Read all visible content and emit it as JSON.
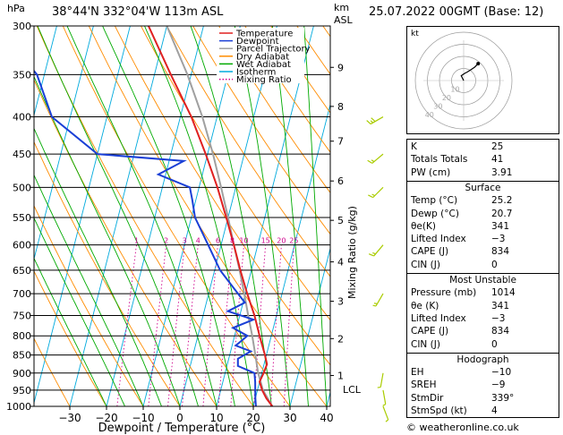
{
  "header": {
    "pressure_unit": "hPa",
    "location": "38°44'N  332°04'W  113m  ASL",
    "height_unit": "km",
    "height_unit_sub": "ASL",
    "datetime": "25.07.2022  00GMT  (Base: 12)"
  },
  "chart_data": {
    "type": "line",
    "xlabel": "Dewpoint / Temperature (°C)",
    "y2label": "Mixing Ratio (g/kg)",
    "x_ticks": [
      "−30",
      "−20",
      "−10",
      "0",
      "10",
      "20",
      "30",
      "40"
    ],
    "x_tick_values": [
      -30,
      -20,
      -10,
      0,
      10,
      20,
      30,
      40
    ],
    "pressure_levels": [
      300,
      350,
      400,
      450,
      500,
      550,
      600,
      650,
      700,
      750,
      800,
      850,
      900,
      950,
      1000
    ],
    "km_ticks": [
      {
        "km": "9",
        "p": 342
      },
      {
        "km": "8",
        "p": 387
      },
      {
        "km": "7",
        "p": 432
      },
      {
        "km": "6",
        "p": 490
      },
      {
        "km": "5",
        "p": 555
      },
      {
        "km": "4",
        "p": 633
      },
      {
        "km": "3",
        "p": 717
      },
      {
        "km": "2",
        "p": 807
      },
      {
        "km": "1",
        "p": 907
      }
    ],
    "lcl_label": "LCL",
    "lcl_p": 948,
    "mixing_ratio_labels": [
      "1",
      "2",
      "3",
      "4",
      "6",
      "8",
      "10",
      "15",
      "20",
      "25"
    ],
    "mixing_ratio_values": [
      1,
      2,
      3,
      4,
      6,
      8,
      10,
      15,
      20,
      25
    ],
    "legend": [
      {
        "name": "Temperature",
        "color": "#e02020",
        "style": "solid"
      },
      {
        "name": "Dewpoint",
        "color": "#1a3fd6",
        "style": "solid"
      },
      {
        "name": "Parcel Trajectory",
        "color": "#a0a0a0",
        "style": "solid"
      },
      {
        "name": "Dry Adiabat",
        "color": "#ff8c00",
        "style": "solid"
      },
      {
        "name": "Wet Adiabat",
        "color": "#00aa00",
        "style": "solid"
      },
      {
        "name": "Isotherm",
        "color": "#00aadd",
        "style": "solid"
      },
      {
        "name": "Mixing Ratio",
        "color": "#d0008c",
        "style": "dotted"
      }
    ],
    "temperature": [
      {
        "p": 1000,
        "t": 25.2
      },
      {
        "p": 975,
        "t": 23.0
      },
      {
        "p": 950,
        "t": 21.3
      },
      {
        "p": 925,
        "t": 20.0
      },
      {
        "p": 900,
        "t": 20.5
      },
      {
        "p": 875,
        "t": 20.8
      },
      {
        "p": 850,
        "t": 19.6
      },
      {
        "p": 800,
        "t": 16.8
      },
      {
        "p": 750,
        "t": 14.0
      },
      {
        "p": 700,
        "t": 10.5
      },
      {
        "p": 650,
        "t": 7.0
      },
      {
        "p": 600,
        "t": 3.5
      },
      {
        "p": 550,
        "t": -0.5
      },
      {
        "p": 500,
        "t": -5.0
      },
      {
        "p": 450,
        "t": -10.5
      },
      {
        "p": 400,
        "t": -17.0
      },
      {
        "p": 350,
        "t": -25.5
      },
      {
        "p": 300,
        "t": -35.0
      }
    ],
    "dewpoint": [
      {
        "p": 1000,
        "t": 20.7
      },
      {
        "p": 975,
        "t": 20.0
      },
      {
        "p": 950,
        "t": 19.4
      },
      {
        "p": 925,
        "t": 18.8
      },
      {
        "p": 900,
        "t": 18.0
      },
      {
        "p": 880,
        "t": 13.0
      },
      {
        "p": 860,
        "t": 12.5
      },
      {
        "p": 840,
        "t": 15.5
      },
      {
        "p": 825,
        "t": 11.0
      },
      {
        "p": 800,
        "t": 13.5
      },
      {
        "p": 780,
        "t": 9.0
      },
      {
        "p": 760,
        "t": 14.0
      },
      {
        "p": 740,
        "t": 6.5
      },
      {
        "p": 720,
        "t": 10.5
      },
      {
        "p": 700,
        "t": 8.0
      },
      {
        "p": 650,
        "t": 1.5
      },
      {
        "p": 600,
        "t": -3.5
      },
      {
        "p": 550,
        "t": -9.0
      },
      {
        "p": 520,
        "t": -11.0
      },
      {
        "p": 500,
        "t": -12.5
      },
      {
        "p": 480,
        "t": -22.0
      },
      {
        "p": 460,
        "t": -16.0
      },
      {
        "p": 450,
        "t": -40.0
      },
      {
        "p": 400,
        "t": -55.0
      },
      {
        "p": 350,
        "t": -62.0
      },
      {
        "p": 320,
        "t": -70.0
      },
      {
        "p": 300,
        "t": -67.0
      }
    ],
    "parcel": [
      {
        "p": 1000,
        "t": 25.2
      },
      {
        "p": 950,
        "t": 21.5
      },
      {
        "p": 900,
        "t": 19.0
      },
      {
        "p": 850,
        "t": 17.0
      },
      {
        "p": 800,
        "t": 14.8
      },
      {
        "p": 750,
        "t": 12.3
      },
      {
        "p": 700,
        "t": 9.7
      },
      {
        "p": 650,
        "t": 6.8
      },
      {
        "p": 600,
        "t": 3.5
      },
      {
        "p": 550,
        "t": 0.0
      },
      {
        "p": 500,
        "t": -4.0
      },
      {
        "p": 450,
        "t": -8.5
      },
      {
        "p": 400,
        "t": -14.0
      },
      {
        "p": 350,
        "t": -21.0
      },
      {
        "p": 300,
        "t": -30.0
      }
    ],
    "wind_barbs": [
      {
        "p": 1000,
        "dir": 339,
        "spd": 4
      },
      {
        "p": 950,
        "dir": 350,
        "spd": 5
      },
      {
        "p": 900,
        "dir": 10,
        "spd": 6
      },
      {
        "p": 700,
        "dir": 30,
        "spd": 8
      },
      {
        "p": 600,
        "dir": 40,
        "spd": 10
      },
      {
        "p": 500,
        "dir": 45,
        "spd": 10
      },
      {
        "p": 450,
        "dir": 50,
        "spd": 12
      },
      {
        "p": 400,
        "dir": 60,
        "spd": 15
      }
    ],
    "hodograph": {
      "label": "kt",
      "ring_labels": [
        "10",
        "20",
        "30",
        "40"
      ],
      "ring_values": [
        10,
        20,
        30,
        40
      ],
      "trace": [
        [
          0,
          0
        ],
        [
          -2,
          4
        ],
        [
          1,
          6
        ],
        [
          3,
          7
        ],
        [
          6,
          9
        ],
        [
          9,
          11
        ],
        [
          12,
          14
        ]
      ]
    }
  },
  "indices": {
    "top": [
      {
        "k": "K",
        "v": "25"
      },
      {
        "k": "Totals Totals",
        "v": "41"
      },
      {
        "k": "PW (cm)",
        "v": "3.91"
      }
    ],
    "surface_title": "Surface",
    "surface": [
      {
        "k": "Temp (°C)",
        "v": "25.2"
      },
      {
        "k": "Dewp (°C)",
        "v": "20.7"
      },
      {
        "k": "θe(K)",
        "v": "341"
      },
      {
        "k": "Lifted Index",
        "v": "−3"
      },
      {
        "k": "CAPE (J)",
        "v": "834"
      },
      {
        "k": "CIN (J)",
        "v": "0"
      }
    ],
    "mu_title": "Most Unstable",
    "mu": [
      {
        "k": "Pressure (mb)",
        "v": "1014"
      },
      {
        "k": "θe (K)",
        "v": "341"
      },
      {
        "k": "Lifted Index",
        "v": "−3"
      },
      {
        "k": "CAPE (J)",
        "v": "834"
      },
      {
        "k": "CIN (J)",
        "v": "0"
      }
    ],
    "hodo_title": "Hodograph",
    "hodo": [
      {
        "k": "EH",
        "v": "−10"
      },
      {
        "k": "SREH",
        "v": "−9"
      },
      {
        "k": "StmDir",
        "v": "339°"
      },
      {
        "k": "StmSpd (kt)",
        "v": "4"
      }
    ]
  },
  "footer": {
    "credit": "© weatheronline.co.uk"
  }
}
